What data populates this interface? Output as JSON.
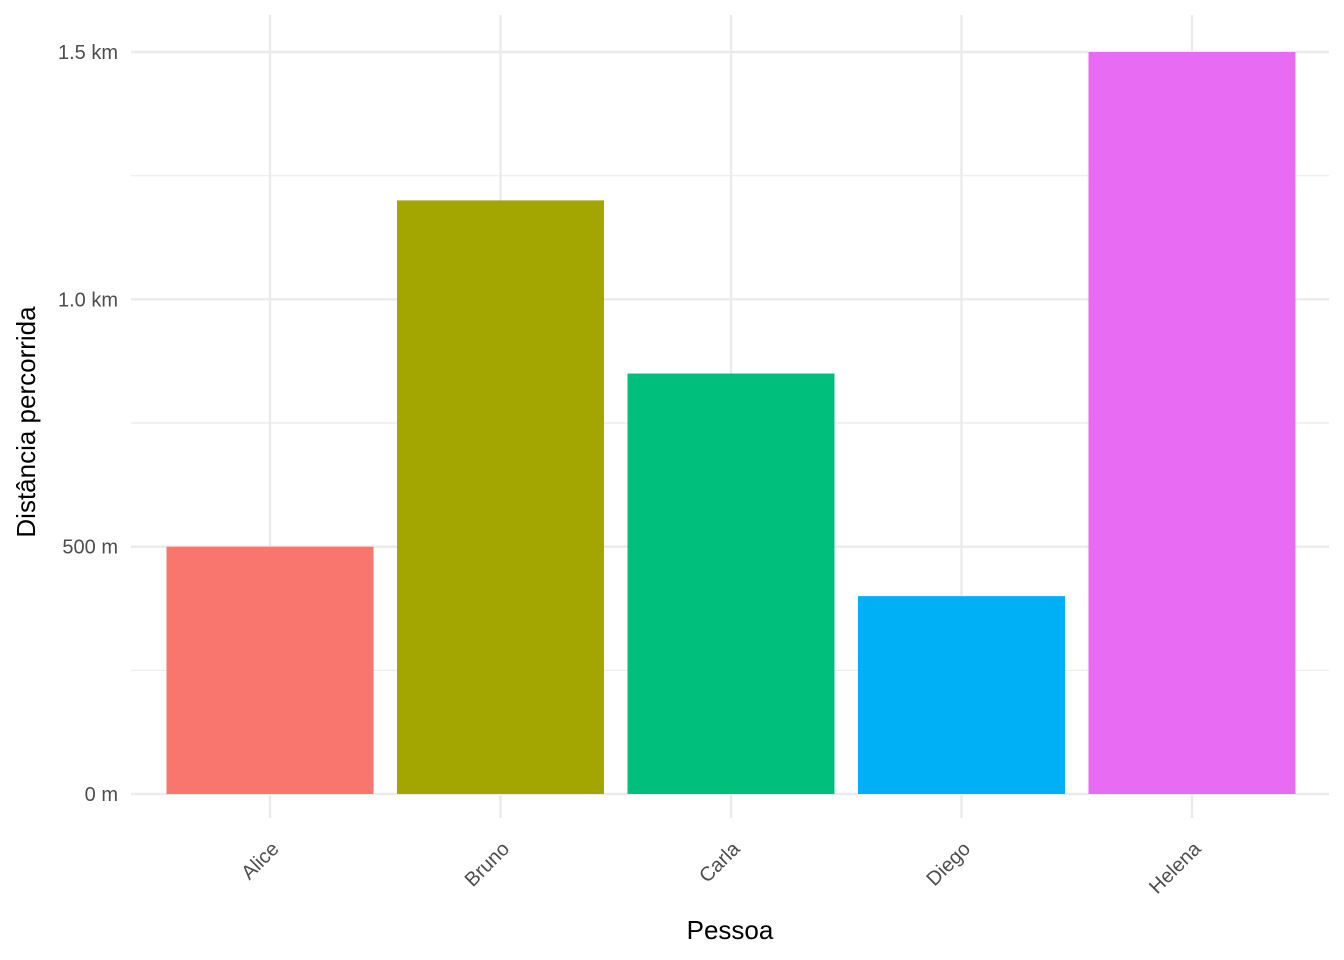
{
  "chart_data": {
    "type": "bar",
    "categories": [
      "Alice",
      "Bruno",
      "Carla",
      "Diego",
      "Helena"
    ],
    "values": [
      500,
      1200,
      850,
      400,
      1500
    ],
    "unit": "m",
    "colors": [
      "#F8766D",
      "#A3A500",
      "#00BF7D",
      "#00B0F6",
      "#E76BF3"
    ],
    "xlabel": "Pessoa",
    "ylabel": "Distância percorrida",
    "ylim": [
      0,
      1500
    ],
    "yticks": [
      {
        "value": 0,
        "label": "0 m"
      },
      {
        "value": 500,
        "label": "500 m"
      },
      {
        "value": 1000,
        "label": "1.0 km"
      },
      {
        "value": 1500,
        "label": "1.5 km"
      }
    ],
    "grid": true,
    "legend": "none"
  }
}
